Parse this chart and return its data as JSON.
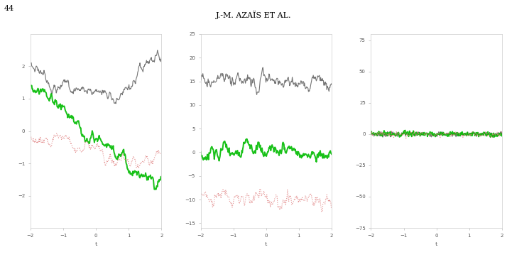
{
  "title": "J.-M. AZAÏS ET AL.",
  "page_num": "44",
  "xlabel": "t",
  "x_range": [
    -2,
    2
  ],
  "n_points": 300,
  "subplots": [
    {
      "C": 0.1,
      "colors": [
        "#666666",
        "#00bb00",
        "#dd7777"
      ],
      "styles": [
        "-",
        "-",
        "dotted"
      ],
      "linewidths": [
        0.8,
        1.4,
        0.8
      ],
      "seeds": [
        3,
        14,
        25
      ],
      "ylim": [
        -3,
        3
      ],
      "yticks": [
        -2,
        -1,
        0,
        1,
        2
      ],
      "offsets": [
        0.3,
        -0.15,
        -0.45
      ]
    },
    {
      "C": 10,
      "colors": [
        "#666666",
        "#00bb00",
        "#dd7777"
      ],
      "styles": [
        "-",
        "-",
        "dotted"
      ],
      "linewidths": [
        0.8,
        1.4,
        0.8
      ],
      "seeds": [
        5,
        16,
        27
      ],
      "ylim": [
        -16,
        25
      ],
      "yticks": [
        -15,
        -10,
        -5,
        0,
        5,
        10,
        15,
        20,
        25
      ],
      "offsets": [
        15,
        0,
        -10
      ]
    },
    {
      "C": 100,
      "colors": [
        "#666666",
        "#00bb00",
        "#dd7777"
      ],
      "styles": [
        "-",
        "-",
        "dotted"
      ],
      "linewidths": [
        0.8,
        1.4,
        0.8
      ],
      "seeds": [
        7,
        18,
        29
      ],
      "ylim": [
        -75,
        80
      ],
      "yticks": [
        -75,
        -50,
        -25,
        0,
        25,
        50,
        75
      ],
      "offsets": [
        0,
        0,
        0
      ]
    }
  ]
}
